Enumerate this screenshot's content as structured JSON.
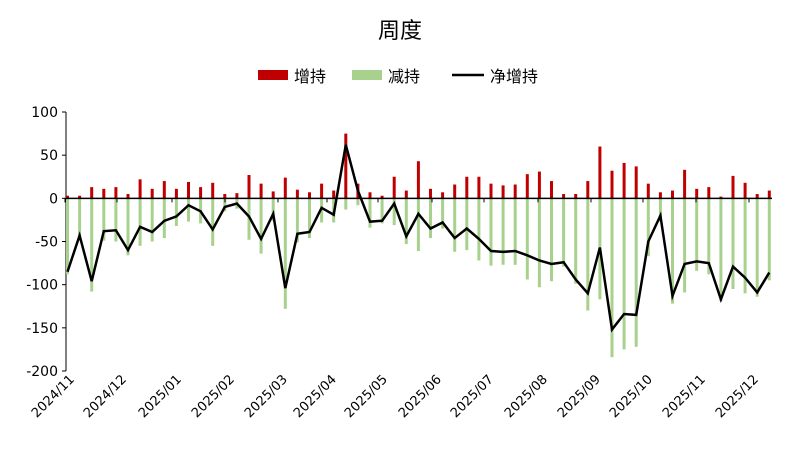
{
  "chart_data": {
    "type": "bar+line",
    "title": "周度",
    "legend_position": "top",
    "legend": [
      "增持",
      "减持",
      "净增持"
    ],
    "colors": {
      "增持": "#c00000",
      "减持": "#a9d18e",
      "净增持": "#000000"
    },
    "ylim": [
      -200,
      100
    ],
    "yticks": [
      100,
      50,
      0,
      -50,
      -100,
      -150,
      -200
    ],
    "grid": false,
    "x_tick_labels": [
      "2024/11",
      "2024/12",
      "2025/01",
      "2025/02",
      "2025/03",
      "2025/04",
      "2025/05",
      "2025/06",
      "2025/07",
      "2025/08",
      "2025/09",
      "2025/10",
      "2025/11",
      "2025/12"
    ],
    "series": [
      {
        "name": "增持",
        "type": "bar",
        "values": [
          3,
          3,
          13,
          11,
          13,
          5,
          22,
          11,
          20,
          11,
          19,
          13,
          18,
          5,
          6,
          27,
          17,
          8,
          24,
          10,
          7,
          17,
          9,
          75,
          17,
          7,
          3,
          25,
          9,
          43,
          11,
          7,
          16,
          25,
          25,
          17,
          15,
          16,
          28,
          31,
          20,
          5,
          5,
          20,
          60,
          32,
          41,
          37,
          17,
          7,
          9,
          33,
          11,
          13,
          2,
          26,
          18,
          5,
          9
        ]
      },
      {
        "name": "减持",
        "type": "bar",
        "values": [
          -88,
          -46,
          -108,
          -49,
          -50,
          -66,
          -55,
          -50,
          -46,
          -32,
          -27,
          -29,
          -55,
          -15,
          -12,
          -48,
          -64,
          -26,
          -128,
          -51,
          -46,
          -28,
          -28,
          -13,
          -8,
          -34,
          -29,
          -31,
          -53,
          -61,
          -46,
          -35,
          -62,
          -60,
          -72,
          -78,
          -77,
          -77,
          -94,
          -103,
          -96,
          -79,
          -99,
          -130,
          -117,
          -184,
          -175,
          -172,
          -67,
          -27,
          -122,
          -109,
          -84,
          -88,
          -119,
          -105,
          -110,
          -114,
          -95
        ]
      },
      {
        "name": "净增持",
        "type": "line",
        "values": [
          -85,
          -43,
          -96,
          -38,
          -37,
          -60,
          -33,
          -39,
          -26,
          -21,
          -8,
          -15,
          -36,
          -10,
          -6,
          -21,
          -47,
          -18,
          -104,
          -41,
          -39,
          -11,
          -19,
          62,
          9,
          -27,
          -26,
          -6,
          -44,
          -18,
          -35,
          -28,
          -46,
          -35,
          -47,
          -61,
          -62,
          -61,
          -66,
          -72,
          -76,
          -74,
          -94,
          -110,
          -57,
          -152,
          -134,
          -135,
          -50,
          -20,
          -113,
          -76,
          -73,
          -75,
          -117,
          -79,
          -92,
          -109,
          -86
        ]
      }
    ]
  }
}
